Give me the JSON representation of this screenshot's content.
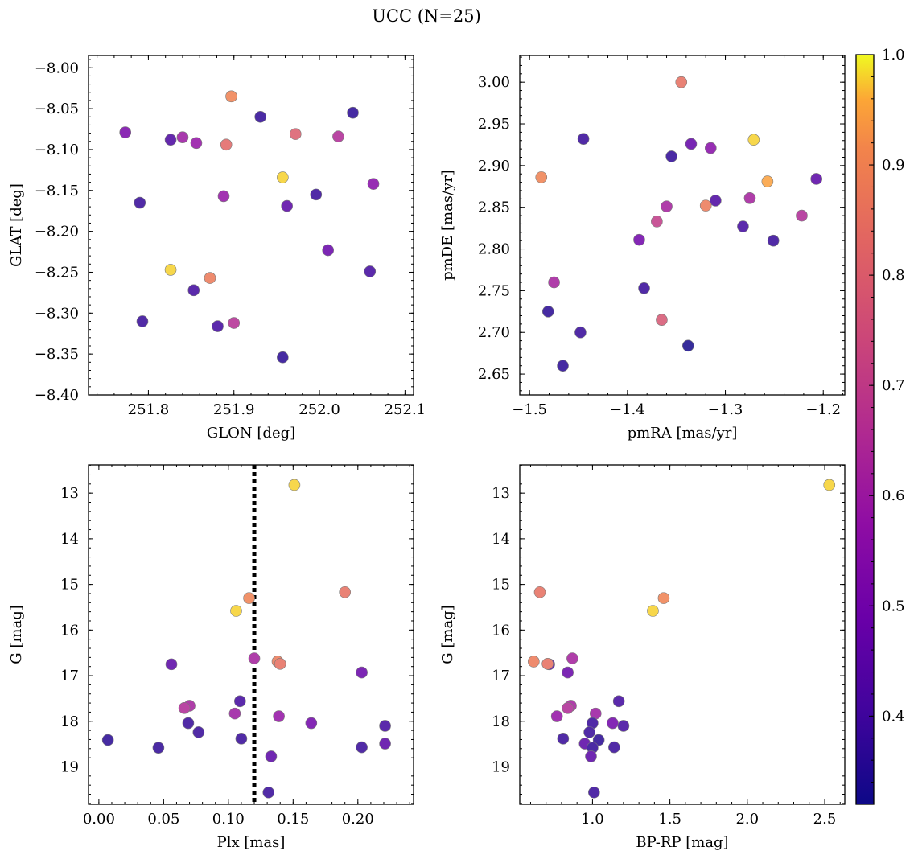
{
  "figure": {
    "title": "UCC (N=25)",
    "colormap": "plasma",
    "color_range": [
      0.32,
      1.0
    ]
  },
  "colorbar": {
    "ticks": [
      0.4,
      0.5,
      0.6,
      0.7,
      0.8,
      0.9,
      1.0
    ],
    "ticklabels": [
      "0.4",
      "0.5",
      "0.6",
      "0.7",
      "0.8",
      "0.9",
      "1.0"
    ]
  },
  "chart_data": [
    {
      "id": "lon-lat",
      "type": "scatter",
      "xlabel": "GLON [deg]",
      "ylabel": "GLAT [deg]",
      "xlim": [
        251.73,
        252.11
      ],
      "ylim": [
        -8.4,
        -7.985
      ],
      "y_inverted": false,
      "xticks": [
        251.8,
        251.9,
        252.0,
        252.1
      ],
      "xticklabels": [
        "251.8",
        "251.9",
        "252.0",
        "252.1"
      ],
      "yticks": [
        -8.4,
        -8.35,
        -8.3,
        -8.25,
        -8.2,
        -8.15,
        -8.1,
        -8.05,
        -8.0
      ],
      "yticklabels": [
        "−8.40",
        "−8.35",
        "−8.30",
        "−8.25",
        "−8.20",
        "−8.15",
        "−8.10",
        "−8.05",
        "−8.00"
      ],
      "x": [
        251.773,
        251.826,
        251.84,
        251.856,
        251.891,
        251.897,
        251.931,
        251.972,
        252.022,
        252.039,
        251.957,
        251.888,
        251.79,
        251.962,
        251.996,
        252.063,
        252.01,
        251.826,
        251.872,
        251.853,
        251.793,
        251.881,
        251.9,
        251.957,
        252.059
      ],
      "y": [
        -8.079,
        -8.088,
        -8.085,
        -8.092,
        -8.094,
        -8.035,
        -8.06,
        -8.081,
        -8.084,
        -8.055,
        -8.134,
        -8.157,
        -8.165,
        -8.169,
        -8.155,
        -8.142,
        -8.223,
        -8.247,
        -8.257,
        -8.272,
        -8.31,
        -8.316,
        -8.312,
        -8.354,
        -8.249
      ],
      "c": [
        0.52,
        0.42,
        0.6,
        0.58,
        0.83,
        0.9,
        0.37,
        0.8,
        0.65,
        0.36,
        0.98,
        0.58,
        0.38,
        0.45,
        0.38,
        0.55,
        0.48,
        0.98,
        0.88,
        0.4,
        0.38,
        0.4,
        0.66,
        0.36,
        0.4
      ]
    },
    {
      "id": "pm",
      "type": "scatter",
      "xlabel": "pmRA [mas/yr]",
      "ylabel": "pmDE [mas/yr]",
      "xlim": [
        -1.51,
        -1.178
      ],
      "ylim": [
        2.625,
        3.032
      ],
      "y_inverted": false,
      "xticks": [
        -1.5,
        -1.4,
        -1.3,
        -1.2
      ],
      "xticklabels": [
        "−1.5",
        "−1.4",
        "−1.3",
        "−1.2"
      ],
      "yticks": [
        2.65,
        2.7,
        2.75,
        2.8,
        2.85,
        2.9,
        2.95,
        3.0
      ],
      "yticklabels": [
        "2.65",
        "2.70",
        "2.75",
        "2.80",
        "2.85",
        "2.90",
        "2.95",
        "3.00"
      ],
      "x": [
        -1.345,
        -1.445,
        -1.335,
        -1.315,
        -1.355,
        -1.271,
        -1.488,
        -1.257,
        -1.207,
        -1.31,
        -1.32,
        -1.36,
        -1.275,
        -1.37,
        -1.222,
        -1.282,
        -1.251,
        -1.388,
        -1.475,
        -1.383,
        -1.481,
        -1.448,
        -1.365,
        -1.338,
        -1.466
      ],
      "y": [
        3.0,
        2.932,
        2.926,
        2.921,
        2.911,
        2.931,
        2.886,
        2.881,
        2.884,
        2.858,
        2.852,
        2.851,
        2.861,
        2.833,
        2.84,
        2.827,
        2.81,
        2.811,
        2.76,
        2.753,
        2.725,
        2.7,
        2.715,
        2.684,
        2.66
      ],
      "c": [
        0.85,
        0.38,
        0.47,
        0.55,
        0.37,
        0.98,
        0.9,
        0.95,
        0.45,
        0.42,
        0.88,
        0.62,
        0.62,
        0.7,
        0.65,
        0.4,
        0.38,
        0.5,
        0.62,
        0.38,
        0.36,
        0.38,
        0.78,
        0.33,
        0.36
      ]
    },
    {
      "id": "plx-g",
      "type": "scatter",
      "xlabel": "Plx [mas]",
      "ylabel": "G [mag]",
      "xlim": [
        -0.008,
        0.243
      ],
      "ylim": [
        19.82,
        12.38
      ],
      "y_inverted": true,
      "vline": 0.12,
      "xticks": [
        0.0,
        0.05,
        0.1,
        0.15,
        0.2
      ],
      "xticklabels": [
        "0.00",
        "0.05",
        "0.10",
        "0.15",
        "0.20"
      ],
      "yticks": [
        13,
        14,
        15,
        16,
        17,
        18,
        19
      ],
      "yticklabels": [
        "13",
        "14",
        "15",
        "16",
        "17",
        "18",
        "19"
      ],
      "x": [
        0.151,
        0.19,
        0.116,
        0.106,
        0.12,
        0.056,
        0.138,
        0.14,
        0.203,
        0.109,
        0.07,
        0.066,
        0.105,
        0.139,
        0.069,
        0.077,
        0.164,
        0.221,
        0.221,
        0.11,
        0.007,
        0.046,
        0.203,
        0.133,
        0.131
      ],
      "y": [
        12.82,
        15.17,
        15.3,
        15.58,
        16.62,
        16.75,
        16.69,
        16.74,
        16.93,
        17.56,
        17.66,
        17.71,
        17.83,
        17.89,
        18.04,
        18.24,
        18.04,
        18.1,
        18.49,
        18.38,
        18.41,
        18.58,
        18.57,
        18.77,
        19.56
      ],
      "c": [
        0.98,
        0.85,
        0.9,
        0.98,
        0.62,
        0.45,
        0.88,
        0.85,
        0.48,
        0.4,
        0.62,
        0.65,
        0.6,
        0.58,
        0.38,
        0.38,
        0.5,
        0.4,
        0.45,
        0.38,
        0.36,
        0.37,
        0.38,
        0.45,
        0.38
      ]
    },
    {
      "id": "color-g",
      "type": "scatter",
      "xlabel": "BP-RP [mag]",
      "ylabel": "G [mag]",
      "xlim": [
        0.53,
        2.63
      ],
      "ylim": [
        19.82,
        12.38
      ],
      "y_inverted": true,
      "xticks": [
        1.0,
        1.5,
        2.0,
        2.5
      ],
      "xticklabels": [
        "1.0",
        "1.5",
        "2.0",
        "2.5"
      ],
      "yticks": [
        13,
        14,
        15,
        16,
        17,
        18,
        19
      ],
      "yticklabels": [
        "13",
        "14",
        "15",
        "16",
        "17",
        "18",
        "19"
      ],
      "x": [
        2.53,
        0.66,
        1.46,
        1.39,
        0.87,
        0.72,
        0.62,
        0.71,
        0.84,
        1.17,
        0.86,
        0.84,
        1.02,
        0.77,
        1.0,
        0.98,
        1.13,
        1.2,
        0.95,
        0.81,
        1.04,
        1.0,
        1.14,
        0.99,
        1.01
      ],
      "y": [
        12.82,
        15.17,
        15.3,
        15.58,
        16.62,
        16.75,
        16.69,
        16.74,
        16.93,
        17.56,
        17.66,
        17.71,
        17.83,
        17.89,
        18.04,
        18.24,
        18.04,
        18.1,
        18.49,
        18.38,
        18.41,
        18.58,
        18.57,
        18.77,
        19.56
      ],
      "c": [
        0.98,
        0.85,
        0.9,
        0.98,
        0.62,
        0.45,
        0.88,
        0.85,
        0.48,
        0.4,
        0.62,
        0.65,
        0.6,
        0.58,
        0.38,
        0.38,
        0.5,
        0.4,
        0.45,
        0.38,
        0.36,
        0.37,
        0.38,
        0.45,
        0.38
      ]
    }
  ]
}
